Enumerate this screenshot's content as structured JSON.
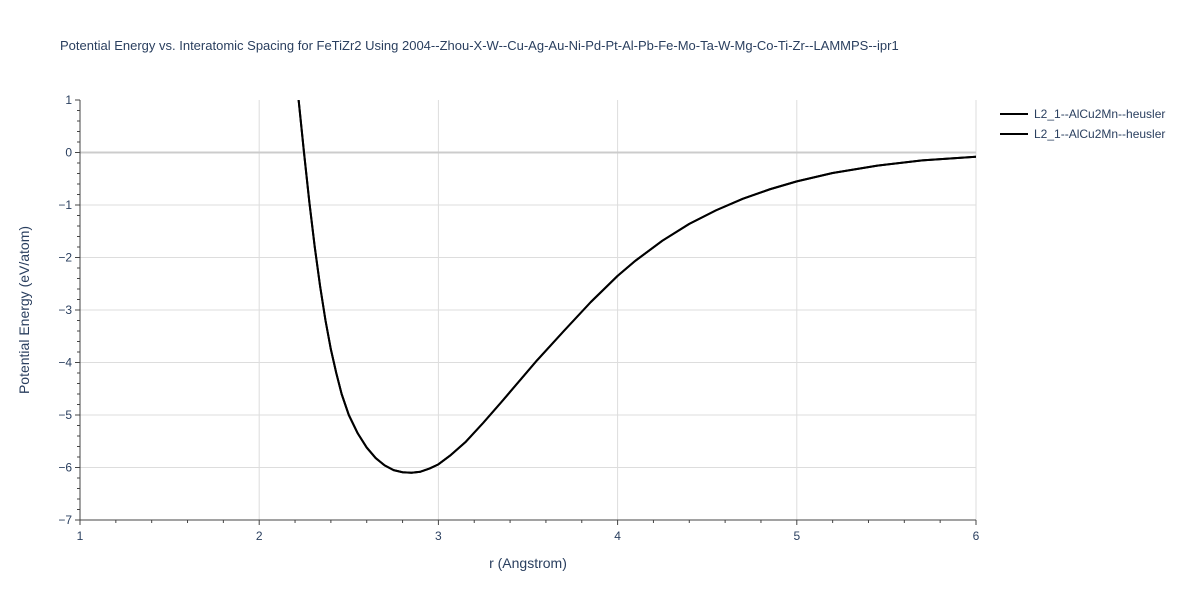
{
  "chart_data": {
    "type": "line",
    "title": "Potential Energy vs. Interatomic Spacing for FeTiZr2 Using 2004--Zhou-X-W--Cu-Ag-Au-Ni-Pd-Pt-Al-Pb-Fe-Mo-Ta-W-Mg-Co-Ti-Zr--LAMMPS--ipr1",
    "xlabel": "r (Angstrom)",
    "ylabel": "Potential Energy (eV/atom)",
    "xlim": [
      1,
      6
    ],
    "ylim": [
      -7,
      1
    ],
    "xticks": [
      1,
      2,
      3,
      4,
      5,
      6
    ],
    "xtick_labels": [
      "1",
      "2",
      "3",
      "4",
      "5",
      "6"
    ],
    "yticks": [
      1,
      0,
      -1,
      -2,
      -3,
      -4,
      -5,
      -6,
      -7
    ],
    "ytick_labels": [
      "1",
      "0",
      "−1",
      "−2",
      "−3",
      "−4",
      "−5",
      "−6",
      "−7"
    ],
    "grid": true,
    "legend_position": "top-right",
    "series": [
      {
        "name": "L2_1--AlCu2Mn--heusler",
        "color": "#000000",
        "x": [
          2.22,
          2.25,
          2.28,
          2.31,
          2.34,
          2.37,
          2.4,
          2.43,
          2.46,
          2.5,
          2.55,
          2.6,
          2.65,
          2.7,
          2.75,
          2.8,
          2.85,
          2.9,
          2.95,
          3.0,
          3.07,
          3.15,
          3.25,
          3.35,
          3.45,
          3.55,
          3.7,
          3.85,
          4.0,
          4.1,
          4.25,
          4.4,
          4.55,
          4.7,
          4.85,
          5.0,
          5.2,
          5.45,
          5.7,
          6.0
        ],
        "y": [
          1.0,
          0.0,
          -0.95,
          -1.8,
          -2.55,
          -3.2,
          -3.75,
          -4.2,
          -4.6,
          -5.0,
          -5.35,
          -5.62,
          -5.82,
          -5.96,
          -6.05,
          -6.09,
          -6.1,
          -6.08,
          -6.02,
          -5.94,
          -5.76,
          -5.52,
          -5.15,
          -4.76,
          -4.36,
          -3.96,
          -3.4,
          -2.85,
          -2.35,
          -2.06,
          -1.68,
          -1.36,
          -1.1,
          -0.88,
          -0.7,
          -0.55,
          -0.39,
          -0.25,
          -0.15,
          -0.08
        ]
      },
      {
        "name": "L2_1--AlCu2Mn--heusler",
        "color": "#000000",
        "x": [
          2.22,
          2.25,
          2.28,
          2.31,
          2.34,
          2.37,
          2.4,
          2.43,
          2.46,
          2.5,
          2.55,
          2.6,
          2.65,
          2.7,
          2.75,
          2.8,
          2.85,
          2.9,
          2.95,
          3.0,
          3.07,
          3.15,
          3.25,
          3.35,
          3.45,
          3.55,
          3.7,
          3.85,
          4.0,
          4.1,
          4.25,
          4.4,
          4.55,
          4.7,
          4.85,
          5.0,
          5.2,
          5.45,
          5.7,
          6.0
        ],
        "y": [
          1.0,
          0.0,
          -0.95,
          -1.8,
          -2.55,
          -3.2,
          -3.75,
          -4.2,
          -4.6,
          -5.0,
          -5.35,
          -5.62,
          -5.82,
          -5.96,
          -6.05,
          -6.09,
          -6.1,
          -6.08,
          -6.02,
          -5.94,
          -5.76,
          -5.52,
          -5.15,
          -4.76,
          -4.36,
          -3.96,
          -3.4,
          -2.85,
          -2.35,
          -2.06,
          -1.68,
          -1.36,
          -1.1,
          -0.88,
          -0.7,
          -0.55,
          -0.39,
          -0.25,
          -0.15,
          -0.08
        ]
      }
    ]
  }
}
